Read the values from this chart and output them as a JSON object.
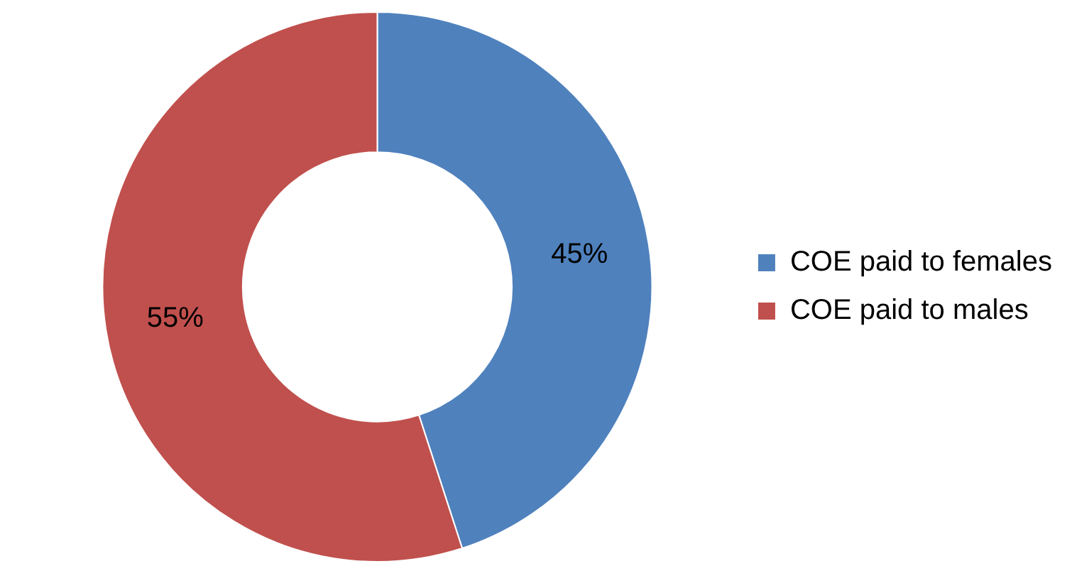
{
  "chart_data": {
    "type": "donut",
    "categories": [
      "COE paid to females",
      "COE paid to males"
    ],
    "values": [
      45,
      55
    ],
    "colors": [
      "#4f81bd",
      "#c0504d"
    ],
    "legend": "right",
    "value_labels": [
      "45%",
      "55%"
    ]
  }
}
